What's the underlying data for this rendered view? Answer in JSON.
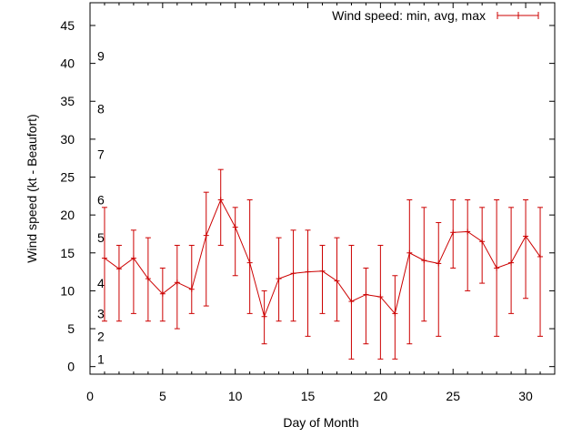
{
  "chart_data": {
    "type": "line",
    "title": "",
    "xlabel": "Day of Month",
    "ylabel": "Wind speed (kt - Beaufort)",
    "xlim": [
      0,
      32
    ],
    "ylim": [
      -1,
      48
    ],
    "xticks": [
      "0",
      "5",
      "10",
      "15",
      "20",
      "25",
      "30"
    ],
    "yticks": [
      "0",
      "5",
      "10",
      "15",
      "20",
      "25",
      "30",
      "35",
      "40",
      "45"
    ],
    "grid": false,
    "legend_position": "top-right",
    "beaufort_labels": [
      {
        "label": "1",
        "y": 1
      },
      {
        "label": "2",
        "y": 4
      },
      {
        "label": "3",
        "y": 7
      },
      {
        "label": "4",
        "y": 11
      },
      {
        "label": "5",
        "y": 17
      },
      {
        "label": "6",
        "y": 22
      },
      {
        "label": "7",
        "y": 28
      },
      {
        "label": "8",
        "y": 34
      },
      {
        "label": "9",
        "y": 41
      }
    ],
    "series": [
      {
        "name": "Wind speed: min, avg, max",
        "color": "#cc0000",
        "x": [
          1,
          2,
          3,
          4,
          5,
          6,
          7,
          8,
          9,
          10,
          11,
          12,
          13,
          14,
          15,
          16,
          17,
          18,
          19,
          20,
          21,
          22,
          23,
          24,
          25,
          26,
          27,
          28,
          29,
          30,
          31
        ],
        "avg": [
          14.3,
          12.9,
          14.3,
          11.6,
          9.6,
          11.1,
          10.2,
          17.3,
          22.0,
          18.4,
          13.7,
          6.6,
          11.6,
          12.3,
          12.5,
          12.6,
          11.3,
          8.6,
          9.5,
          9.2,
          7.0,
          15.0,
          14.0,
          13.6,
          17.7,
          17.8,
          16.5,
          13.0,
          13.7,
          17.2,
          14.5
        ],
        "min": [
          6,
          6,
          7,
          6,
          6,
          5,
          7,
          8,
          16,
          12,
          7,
          3,
          6,
          6,
          4,
          7,
          6,
          1,
          3,
          1,
          1,
          3,
          6,
          4,
          13,
          10,
          11,
          4,
          7,
          9,
          4
        ],
        "max": [
          21,
          16,
          18,
          17,
          13,
          16,
          16,
          23,
          26,
          21,
          22,
          10,
          17,
          18,
          18,
          16,
          17,
          16,
          13,
          16,
          12,
          22,
          21,
          19,
          22,
          22,
          21,
          22,
          21,
          22,
          21
        ]
      }
    ]
  }
}
